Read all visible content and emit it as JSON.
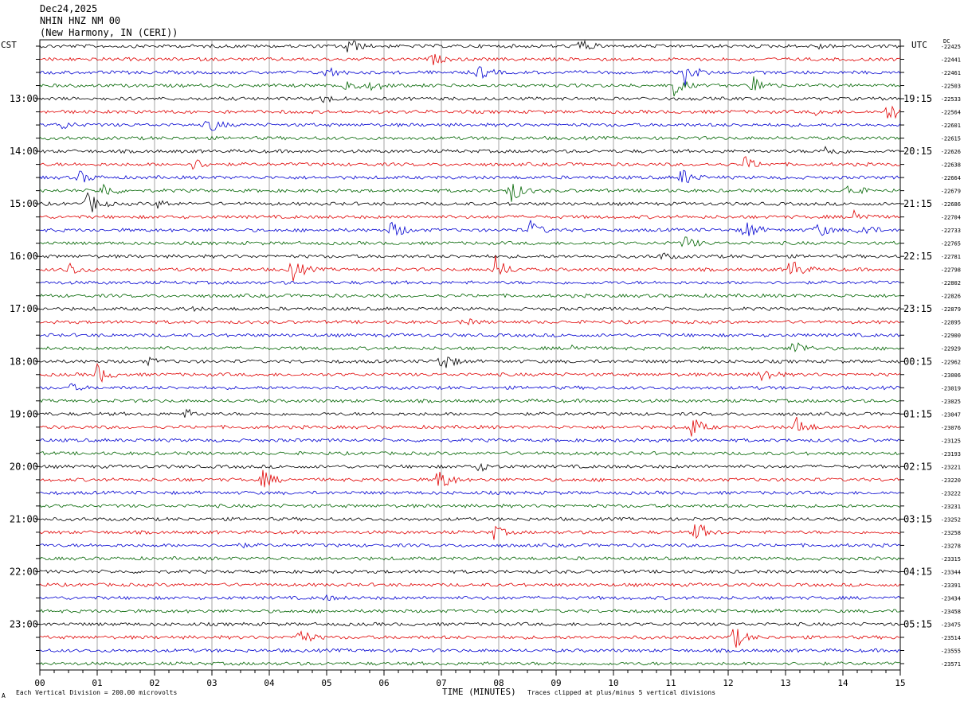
{
  "header": {
    "date": "Dec24,2025",
    "station": "NHIN HNZ NM 00",
    "location": "(New Harmony, IN (CERI))",
    "left_tz": "CST",
    "right_tz": "UTC",
    "dc_label": "DC"
  },
  "footer": {
    "scale_note": "Each Vertical Division =  200.00 microvolts",
    "x_axis_label": "TIME (MINUTES)",
    "clip_note": "Traces clipped at plus/minus 5 vertical divisions",
    "corner_mark": "A"
  },
  "colors": {
    "cycle": [
      "#000000",
      "#e00000",
      "#0000d0",
      "#006400"
    ],
    "grid": "#909090"
  },
  "chart_data": {
    "type": "line",
    "title": "NHIN HNZ NM 00",
    "xlabel": "TIME (MINUTES)",
    "xlim": [
      0,
      15
    ],
    "x_ticks": [
      "00",
      "01",
      "02",
      "03",
      "04",
      "05",
      "06",
      "07",
      "08",
      "09",
      "10",
      "11",
      "12",
      "13",
      "14",
      "15"
    ],
    "trace_count": 48,
    "trace_minutes": 15,
    "left_hour_labels": [
      {
        "trace": 4,
        "label": "13:00"
      },
      {
        "trace": 8,
        "label": "14:00"
      },
      {
        "trace": 12,
        "label": "15:00"
      },
      {
        "trace": 16,
        "label": "16:00"
      },
      {
        "trace": 20,
        "label": "17:00"
      },
      {
        "trace": 24,
        "label": "18:00"
      },
      {
        "trace": 28,
        "label": "19:00"
      },
      {
        "trace": 32,
        "label": "20:00"
      },
      {
        "trace": 36,
        "label": "21:00"
      },
      {
        "trace": 40,
        "label": "22:00"
      },
      {
        "trace": 44,
        "label": "23:00"
      }
    ],
    "right_hour_labels": [
      {
        "trace": 4,
        "label": "19:15"
      },
      {
        "trace": 8,
        "label": "20:15"
      },
      {
        "trace": 12,
        "label": "21:15"
      },
      {
        "trace": 16,
        "label": "22:15"
      },
      {
        "trace": 20,
        "label": "23:15"
      },
      {
        "trace": 24,
        "label": "00:15"
      },
      {
        "trace": 28,
        "label": "01:15"
      },
      {
        "trace": 32,
        "label": "02:15"
      },
      {
        "trace": 36,
        "label": "03:15"
      },
      {
        "trace": 40,
        "label": "04:15"
      },
      {
        "trace": 44,
        "label": "05:15"
      }
    ],
    "dc_offsets": [
      "-22425",
      "-22441",
      "-22461",
      "-22503",
      "-22533",
      "-22564",
      "-22601",
      "-22615",
      "-22626",
      "-22638",
      "-22664",
      "-22679",
      "-22686",
      "-22704",
      "-22733",
      "-22765",
      "-22781",
      "-22798",
      "-22802",
      "-22826",
      "-22879",
      "-22895",
      "-22900",
      "-22929",
      "-22962",
      "-23006",
      "-23019",
      "-23025",
      "-23047",
      "-23076",
      "-23125",
      "-23193",
      "-23221",
      "-23220",
      "-23222",
      "-23231",
      "-23252",
      "-23258",
      "-23278",
      "-23315",
      "-23344",
      "-23391",
      "-23434",
      "-23458",
      "-23475",
      "-23514",
      "-23555",
      "-23571"
    ],
    "events": [
      {
        "trace": 0,
        "minute": 5.35,
        "amp": 1.0
      },
      {
        "trace": 0,
        "minute": 9.4,
        "amp": 0.8
      },
      {
        "trace": 0,
        "minute": 13.55,
        "amp": 0.3
      },
      {
        "trace": 1,
        "minute": 6.85,
        "amp": 0.5
      },
      {
        "trace": 2,
        "minute": 5.0,
        "amp": 0.6
      },
      {
        "trace": 2,
        "minute": 7.65,
        "amp": 0.7
      },
      {
        "trace": 2,
        "minute": 11.25,
        "amp": 1.2
      },
      {
        "trace": 3,
        "minute": 5.3,
        "amp": 0.9
      },
      {
        "trace": 3,
        "minute": 5.8,
        "amp": 0.6
      },
      {
        "trace": 3,
        "minute": 11.05,
        "amp": 1.0
      },
      {
        "trace": 3,
        "minute": 12.45,
        "amp": 1.1
      },
      {
        "trace": 4,
        "minute": 4.95,
        "amp": 0.4
      },
      {
        "trace": 5,
        "minute": 13.55,
        "amp": 0.3
      },
      {
        "trace": 5,
        "minute": 14.8,
        "amp": 1.0
      },
      {
        "trace": 6,
        "minute": 0.35,
        "amp": 0.5
      },
      {
        "trace": 6,
        "minute": 2.95,
        "amp": 0.8
      },
      {
        "trace": 8,
        "minute": 13.7,
        "amp": 0.6
      },
      {
        "trace": 9,
        "minute": 2.7,
        "amp": 0.6
      },
      {
        "trace": 9,
        "minute": 12.3,
        "amp": 0.7
      },
      {
        "trace": 10,
        "minute": 0.7,
        "amp": 0.6
      },
      {
        "trace": 10,
        "minute": 11.2,
        "amp": 0.9
      },
      {
        "trace": 11,
        "minute": 1.1,
        "amp": 0.8
      },
      {
        "trace": 11,
        "minute": 8.2,
        "amp": 1.3
      },
      {
        "trace": 11,
        "minute": 14.1,
        "amp": 0.7
      },
      {
        "trace": 12,
        "minute": 0.85,
        "amp": 1.2
      },
      {
        "trace": 12,
        "minute": 2.05,
        "amp": 0.4
      },
      {
        "trace": 13,
        "minute": 14.2,
        "amp": 0.8
      },
      {
        "trace": 14,
        "minute": 6.15,
        "amp": 1.0
      },
      {
        "trace": 14,
        "minute": 8.55,
        "amp": 0.9
      },
      {
        "trace": 14,
        "minute": 12.3,
        "amp": 1.1
      },
      {
        "trace": 14,
        "minute": 13.55,
        "amp": 0.8
      },
      {
        "trace": 14,
        "minute": 14.3,
        "amp": 0.9
      },
      {
        "trace": 15,
        "minute": 11.25,
        "amp": 0.7
      },
      {
        "trace": 16,
        "minute": 10.85,
        "amp": 0.3
      },
      {
        "trace": 17,
        "minute": 0.5,
        "amp": 0.8
      },
      {
        "trace": 17,
        "minute": 4.4,
        "amp": 1.3
      },
      {
        "trace": 17,
        "minute": 7.95,
        "amp": 1.3
      },
      {
        "trace": 17,
        "minute": 13.1,
        "amp": 1.2
      },
      {
        "trace": 20,
        "minute": 2.55,
        "amp": 0.2
      },
      {
        "trace": 21,
        "minute": 7.4,
        "amp": 0.3
      },
      {
        "trace": 23,
        "minute": 9.3,
        "amp": 0.4
      },
      {
        "trace": 23,
        "minute": 13.15,
        "amp": 0.9
      },
      {
        "trace": 24,
        "minute": 1.9,
        "amp": 0.3
      },
      {
        "trace": 24,
        "minute": 7.0,
        "amp": 1.1
      },
      {
        "trace": 25,
        "minute": 1.0,
        "amp": 1.0
      },
      {
        "trace": 25,
        "minute": 12.6,
        "amp": 0.9
      },
      {
        "trace": 26,
        "minute": 0.55,
        "amp": 0.3
      },
      {
        "trace": 28,
        "minute": 2.55,
        "amp": 0.4
      },
      {
        "trace": 29,
        "minute": 11.35,
        "amp": 1.2
      },
      {
        "trace": 29,
        "minute": 13.2,
        "amp": 1.0
      },
      {
        "trace": 32,
        "minute": 7.6,
        "amp": 0.6
      },
      {
        "trace": 33,
        "minute": 3.9,
        "amp": 0.9
      },
      {
        "trace": 33,
        "minute": 6.95,
        "amp": 1.4
      },
      {
        "trace": 37,
        "minute": 7.9,
        "amp": 0.7
      },
      {
        "trace": 37,
        "minute": 11.45,
        "amp": 1.1
      },
      {
        "trace": 38,
        "minute": 3.45,
        "amp": 0.2
      },
      {
        "trace": 42,
        "minute": 5.0,
        "amp": 0.2
      },
      {
        "trace": 45,
        "minute": 4.5,
        "amp": 1.1
      },
      {
        "trace": 45,
        "minute": 12.1,
        "amp": 1.2
      }
    ],
    "grid": true
  }
}
